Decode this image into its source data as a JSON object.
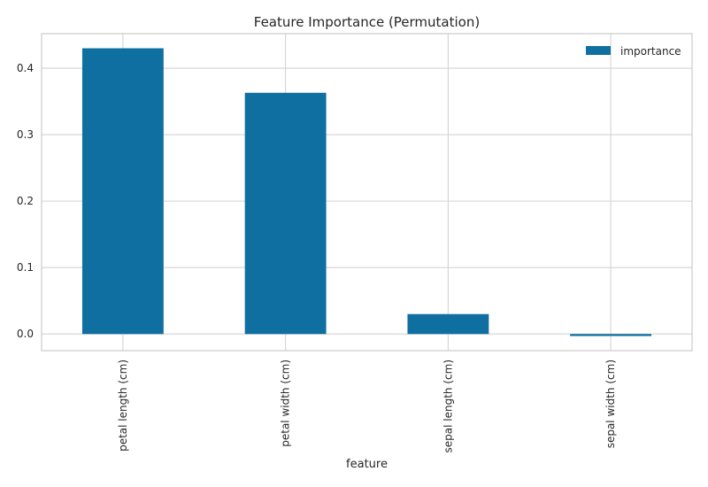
{
  "chart_data": {
    "type": "bar",
    "title": "Feature Importance (Permutation)",
    "xlabel": "feature",
    "ylabel": "",
    "categories": [
      "petal length (cm)",
      "petal width (cm)",
      "sepal length (cm)",
      "sepal width (cm)"
    ],
    "series": [
      {
        "name": "importance",
        "values": [
          0.43,
          0.363,
          0.03,
          -0.003
        ],
        "color": "#0e6fa0"
      }
    ],
    "ylim": [
      -0.025,
      0.452
    ],
    "yticks": [
      0.0,
      0.1,
      0.2,
      0.3,
      0.4
    ],
    "ytick_labels": [
      "0.0",
      "0.1",
      "0.2",
      "0.3",
      "0.4"
    ],
    "grid": true,
    "legend_position": "top-right",
    "colors": {
      "grid": "#d3d3d3",
      "axes_edge": "#cccccc",
      "text": "#262626"
    }
  }
}
